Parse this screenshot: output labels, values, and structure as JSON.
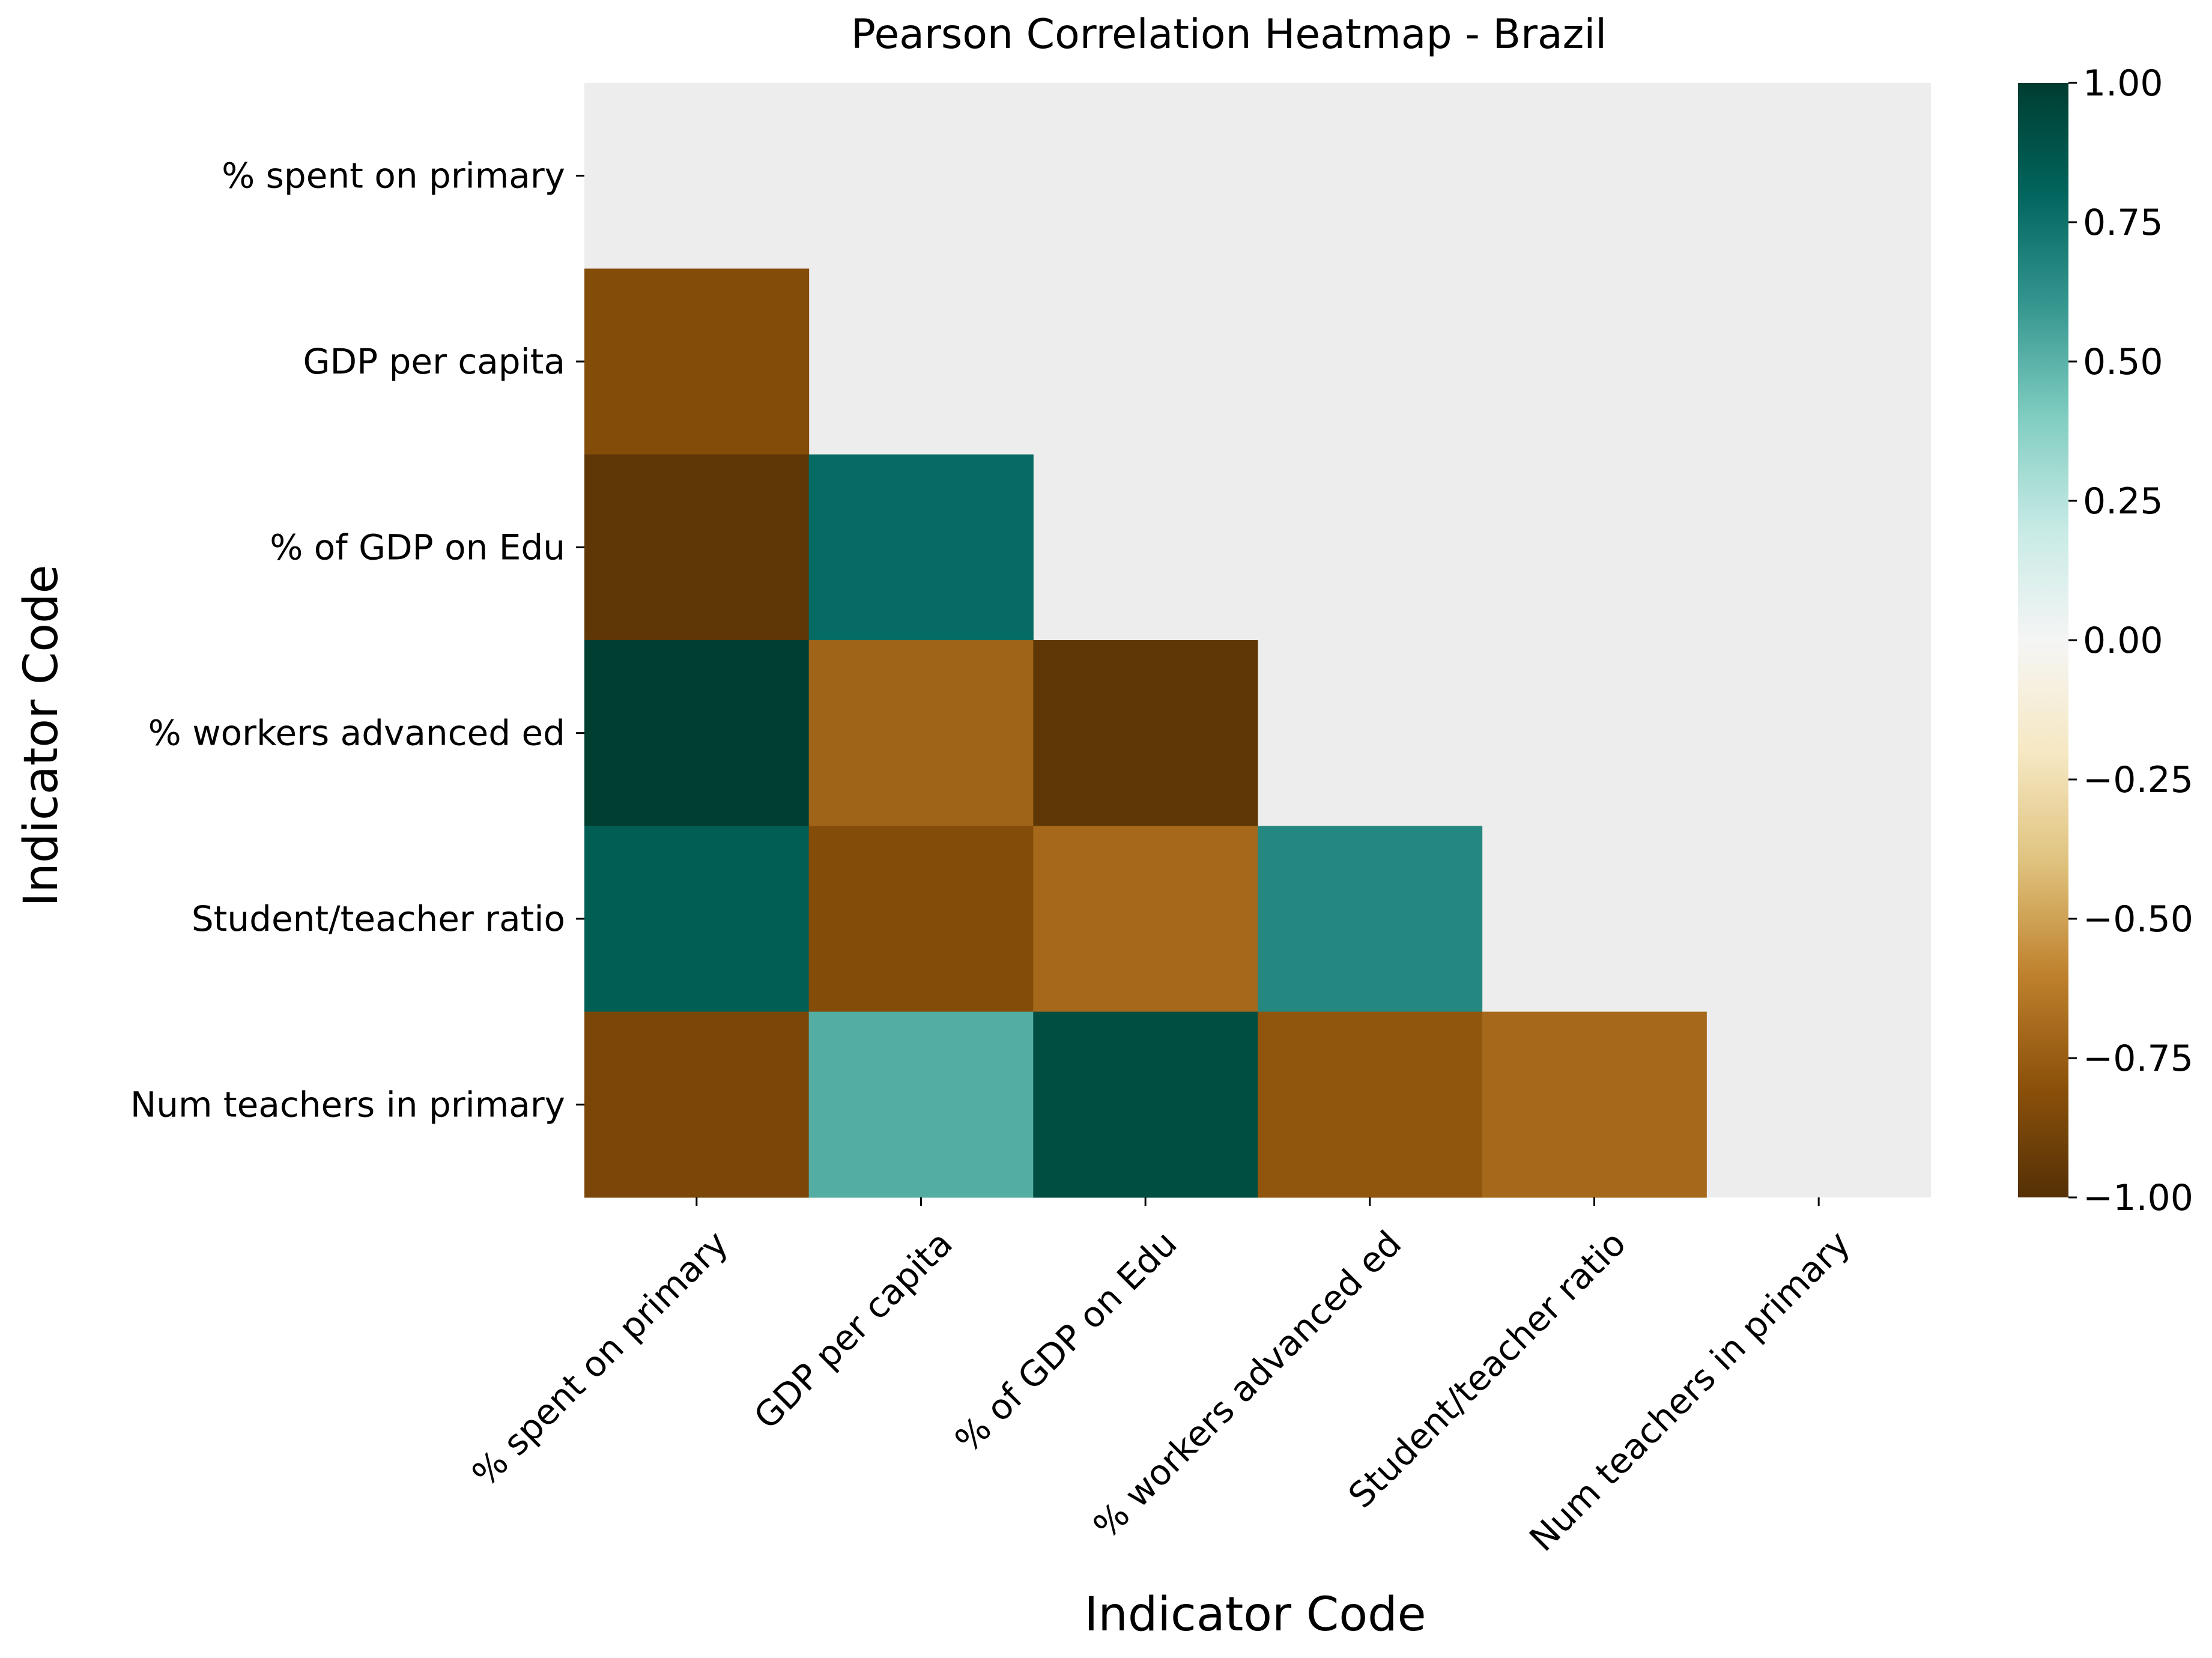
{
  "chart_data": {
    "type": "heatmap",
    "title": "Pearson Correlation Heatmap - Brazil",
    "xlabel": "Indicator Code",
    "ylabel": "Indicator Code",
    "x_categories": [
      "% spent on primary",
      "GDP per capita",
      "% of GDP on Edu",
      "% workers advanced ed",
      "Student/teacher ratio",
      "Num teachers in primary"
    ],
    "y_categories": [
      "% spent on primary",
      "GDP per capita",
      "% of GDP on Edu",
      "% workers advanced ed",
      "Student/teacher ratio",
      "Num teachers in primary"
    ],
    "mask": "upper triangle incl. diagonal",
    "values": [
      [
        null,
        null,
        null,
        null,
        null,
        null
      ],
      [
        -0.83,
        null,
        null,
        null,
        null,
        null
      ],
      [
        -0.96,
        0.78,
        null,
        null,
        null,
        null
      ],
      [
        0.99,
        -0.72,
        -0.96,
        null,
        null,
        null
      ],
      [
        0.84,
        -0.83,
        -0.7,
        0.66,
        null,
        null
      ],
      [
        -0.86,
        0.52,
        0.92,
        -0.78,
        -0.7,
        null
      ]
    ],
    "colorbar": {
      "cmap": "BrBG",
      "vmin": -1.0,
      "vmax": 1.0,
      "ticks": [
        "1.00",
        "0.75",
        "0.50",
        "0.25",
        "0.00",
        "−0.25",
        "−0.50",
        "−0.75",
        "−1.00"
      ]
    },
    "background_color": "#ededed",
    "grid": false
  }
}
